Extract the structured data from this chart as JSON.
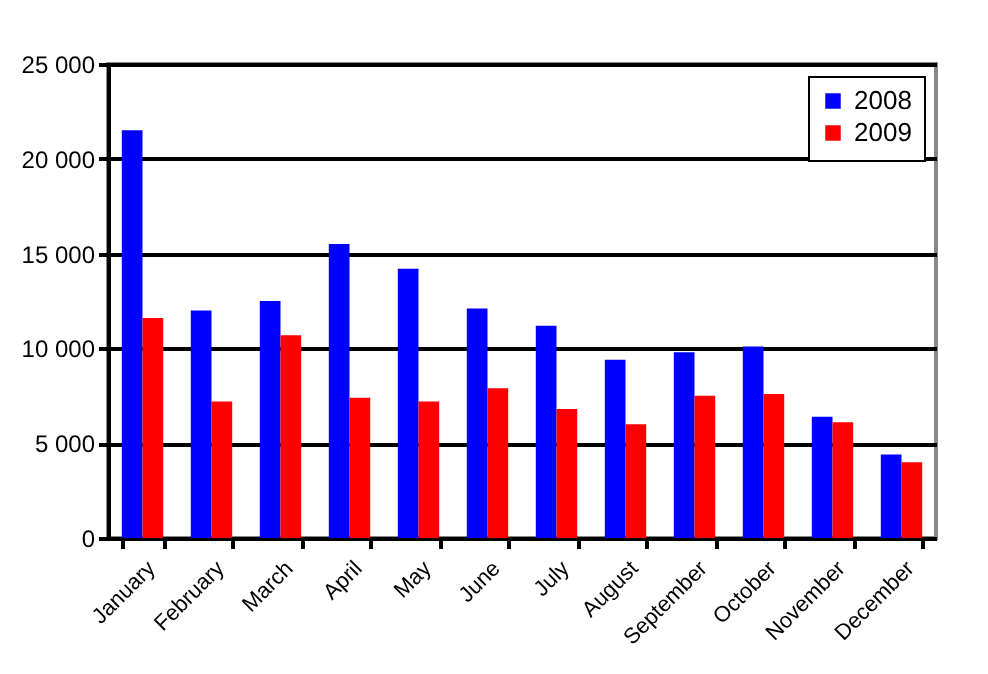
{
  "chart_data": {
    "type": "bar",
    "categories": [
      "January",
      "February",
      "March",
      "April",
      "May",
      "June",
      "July",
      "August",
      "September",
      "October",
      "November",
      "December"
    ],
    "series": [
      {
        "name": "2008",
        "color": "#0000ff",
        "values": [
          21500,
          12000,
          12500,
          15500,
          14200,
          12100,
          11200,
          9400,
          9800,
          10100,
          6400,
          4400
        ]
      },
      {
        "name": "2009",
        "color": "#ff0000",
        "values": [
          11600,
          7200,
          10700,
          7400,
          7200,
          7900,
          6800,
          6000,
          7500,
          7600,
          6100,
          4000
        ]
      }
    ],
    "ylim": [
      0,
      25000
    ],
    "yticks": [
      0,
      {
        "value": 5000,
        "label": "5 000"
      },
      {
        "value": 10000,
        "label": "10 000"
      },
      {
        "value": 15000,
        "label": "15 000"
      },
      {
        "value": 20000,
        "label": "20 000"
      },
      {
        "value": 25000,
        "label": "25 000"
      }
    ],
    "grid": "y",
    "legend": "top right"
  }
}
